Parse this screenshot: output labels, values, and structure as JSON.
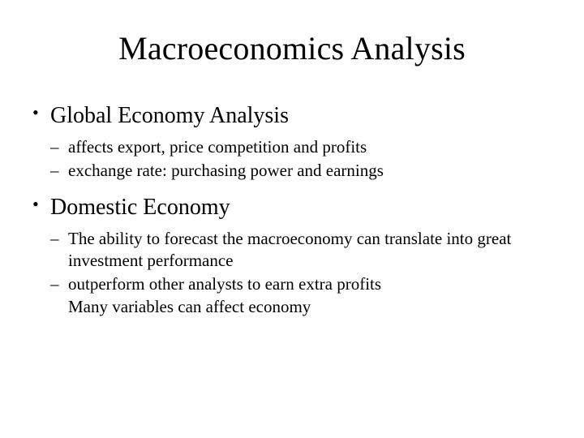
{
  "title": "Macroeconomics Analysis",
  "content": {
    "b1": "Global Economy Analysis",
    "b1s1": "affects export, price competition and profits",
    "b1s2": "exchange rate: purchasing power and earnings",
    "b2": "Domestic Economy",
    "b2s1": "The ability to forecast the macroeconomy can translate into great investment performance",
    "b2s2": "outperform other analysts to earn extra profits",
    "b2s2c": "Many variables can affect economy"
  },
  "style": {
    "background_color": "#ffffff",
    "text_color": "#000000",
    "font_family": "Times New Roman",
    "title_fontsize": 40,
    "l1_fontsize": 28,
    "l2_fontsize": 21
  }
}
